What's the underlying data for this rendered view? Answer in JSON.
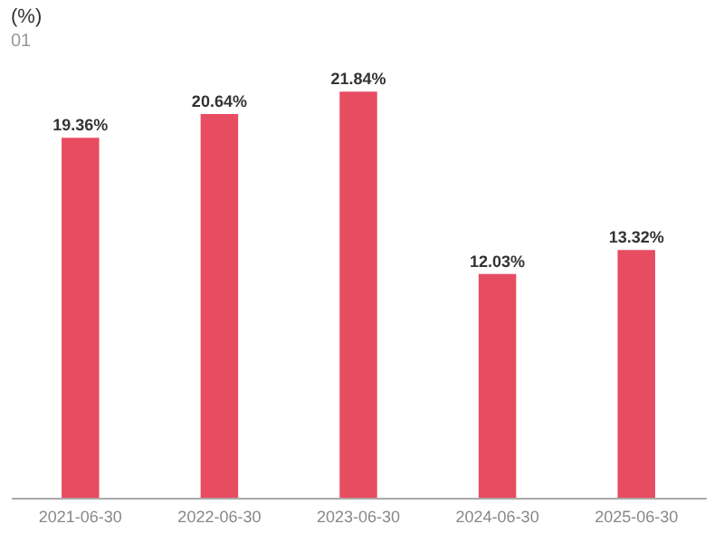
{
  "chart_data": {
    "type": "bar",
    "title": "(%)",
    "subtitle": "01",
    "categories": [
      "2021-06-30",
      "2022-06-30",
      "2023-06-30",
      "2024-06-30",
      "2025-06-30"
    ],
    "values": [
      19.36,
      20.64,
      21.84,
      12.03,
      13.32
    ],
    "value_labels": [
      "19.36%",
      "20.64%",
      "21.84%",
      "12.03%",
      "13.32%"
    ],
    "color": "#e84c61"
  }
}
